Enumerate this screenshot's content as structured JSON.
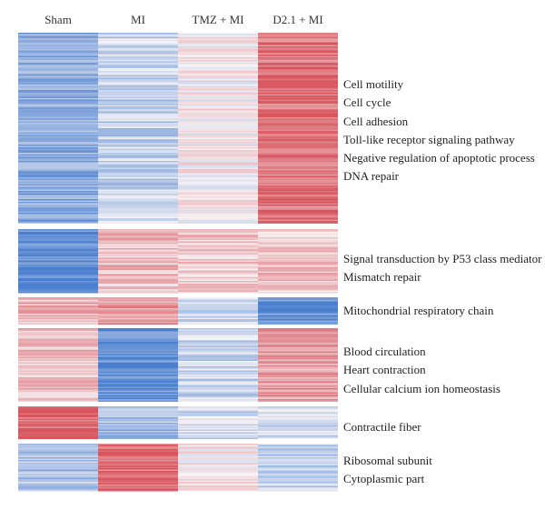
{
  "figure": {
    "columns": [
      "Sham",
      "MI",
      "TMZ + MI",
      "D2.1 + MI"
    ],
    "clusters": [
      {
        "terms": [
          "Cell motility",
          "Cell cycle",
          "Cell adhesion",
          "Toll-like receptor signaling pathway",
          "Negative regulation of apoptotic process",
          "DNA repair"
        ]
      },
      {
        "terms": [
          "Signal transduction by P53 class mediator",
          "Mismatch repair"
        ]
      },
      {
        "terms": [
          "Mitochondrial respiratory chain"
        ]
      },
      {
        "terms": [
          "Blood circulation",
          "Heart contraction",
          "Cellular calcium ion homeostasis"
        ]
      },
      {
        "terms": [
          "Contractile fiber"
        ]
      },
      {
        "terms": [
          "Ribosomal subunit",
          "Cytoplasmic part"
        ]
      }
    ]
  },
  "chart_data": {
    "type": "heatmap",
    "columns": [
      "Sham",
      "MI",
      "TMZ + MI",
      "D2.1 + MI"
    ],
    "color_scale": {
      "low": "#4a7fcf",
      "mid": "#f7f4f6",
      "high": "#d8555d"
    },
    "clusters": [
      {
        "level": [
          -0.6,
          -0.3,
          0.05,
          0.8
        ],
        "terms": [
          "Cell motility",
          "Cell cycle",
          "Cell adhesion",
          "Toll-like receptor signaling pathway",
          "Negative regulation of apoptotic process",
          "DNA repair"
        ]
      },
      {
        "level": [
          -0.9,
          0.35,
          0.25,
          0.3
        ],
        "terms": [
          "Signal transduction by P53 class mediator",
          "Mismatch repair"
        ]
      },
      {
        "level": [
          0.4,
          0.6,
          -0.2,
          -0.85
        ],
        "terms": [
          "Mitochondrial respiratory chain"
        ]
      },
      {
        "level": [
          0.35,
          -0.85,
          -0.25,
          0.55
        ],
        "terms": [
          "Blood circulation",
          "Heart contraction",
          "Cellular calcium ion homeostasis"
        ]
      },
      {
        "level": [
          0.9,
          -0.45,
          -0.2,
          -0.2
        ],
        "terms": [
          "Contractile fiber"
        ]
      },
      {
        "level": [
          -0.4,
          0.8,
          0.1,
          -0.35
        ],
        "terms": [
          "Ribosomal subunit",
          "Cytoplasmic part"
        ]
      }
    ]
  }
}
